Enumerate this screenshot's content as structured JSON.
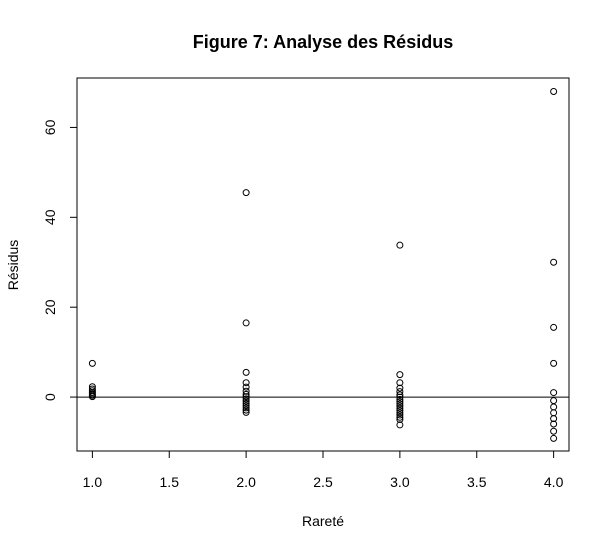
{
  "chart_data": {
    "type": "scatter",
    "title": "Figure 7: Analyse des Résidus",
    "xlabel": "Rareté",
    "ylabel": "Résidus",
    "xlim": [
      0.9,
      4.1
    ],
    "ylim": [
      -12,
      71
    ],
    "x_ticks": [
      1.0,
      1.5,
      2.0,
      2.5,
      3.0,
      3.5,
      4.0
    ],
    "x_tick_labels": [
      "1.0",
      "1.5",
      "2.0",
      "2.5",
      "3.0",
      "3.5",
      "4.0"
    ],
    "y_ticks": [
      0,
      20,
      40,
      60
    ],
    "y_tick_labels": [
      "0",
      "20",
      "40",
      "60"
    ],
    "reference_line": 0,
    "grid": false,
    "legend": "none",
    "marker": "open-circle",
    "points": [
      {
        "x": 1,
        "y": 7.5
      },
      {
        "x": 1,
        "y": 2.3
      },
      {
        "x": 1,
        "y": 1.8
      },
      {
        "x": 1,
        "y": 1.4
      },
      {
        "x": 1,
        "y": 1.0
      },
      {
        "x": 1,
        "y": 0.7
      },
      {
        "x": 1,
        "y": 0.4
      },
      {
        "x": 1,
        "y": 0.1
      },
      {
        "x": 2,
        "y": 45.5
      },
      {
        "x": 2,
        "y": 16.5
      },
      {
        "x": 2,
        "y": 5.5
      },
      {
        "x": 2,
        "y": 3.2
      },
      {
        "x": 2,
        "y": 2.2
      },
      {
        "x": 2,
        "y": 1.3
      },
      {
        "x": 2,
        "y": 0.6
      },
      {
        "x": 2,
        "y": 0.1
      },
      {
        "x": 2,
        "y": -0.4
      },
      {
        "x": 2,
        "y": -0.9
      },
      {
        "x": 2,
        "y": -1.4
      },
      {
        "x": 2,
        "y": -1.9
      },
      {
        "x": 2,
        "y": -2.4
      },
      {
        "x": 2,
        "y": -2.9
      },
      {
        "x": 2,
        "y": -3.4
      },
      {
        "x": 3,
        "y": 33.8
      },
      {
        "x": 3,
        "y": 5.0
      },
      {
        "x": 3,
        "y": 3.2
      },
      {
        "x": 3,
        "y": 2.0
      },
      {
        "x": 3,
        "y": 1.2
      },
      {
        "x": 3,
        "y": 0.5
      },
      {
        "x": 3,
        "y": 0.0
      },
      {
        "x": 3,
        "y": -0.5
      },
      {
        "x": 3,
        "y": -1.0
      },
      {
        "x": 3,
        "y": -1.5
      },
      {
        "x": 3,
        "y": -2.0
      },
      {
        "x": 3,
        "y": -2.5
      },
      {
        "x": 3,
        "y": -3.0
      },
      {
        "x": 3,
        "y": -3.5
      },
      {
        "x": 3,
        "y": -4.0
      },
      {
        "x": 3,
        "y": -4.5
      },
      {
        "x": 3,
        "y": -5.0
      },
      {
        "x": 3,
        "y": -6.2
      },
      {
        "x": 4,
        "y": 68.0
      },
      {
        "x": 4,
        "y": 30.0
      },
      {
        "x": 4,
        "y": 15.5
      },
      {
        "x": 4,
        "y": 7.5
      },
      {
        "x": 4,
        "y": 1.0
      },
      {
        "x": 4,
        "y": -0.8
      },
      {
        "x": 4,
        "y": -2.2
      },
      {
        "x": 4,
        "y": -3.5
      },
      {
        "x": 4,
        "y": -4.8
      },
      {
        "x": 4,
        "y": -6.0
      },
      {
        "x": 4,
        "y": -7.6
      },
      {
        "x": 4,
        "y": -9.2
      }
    ]
  }
}
